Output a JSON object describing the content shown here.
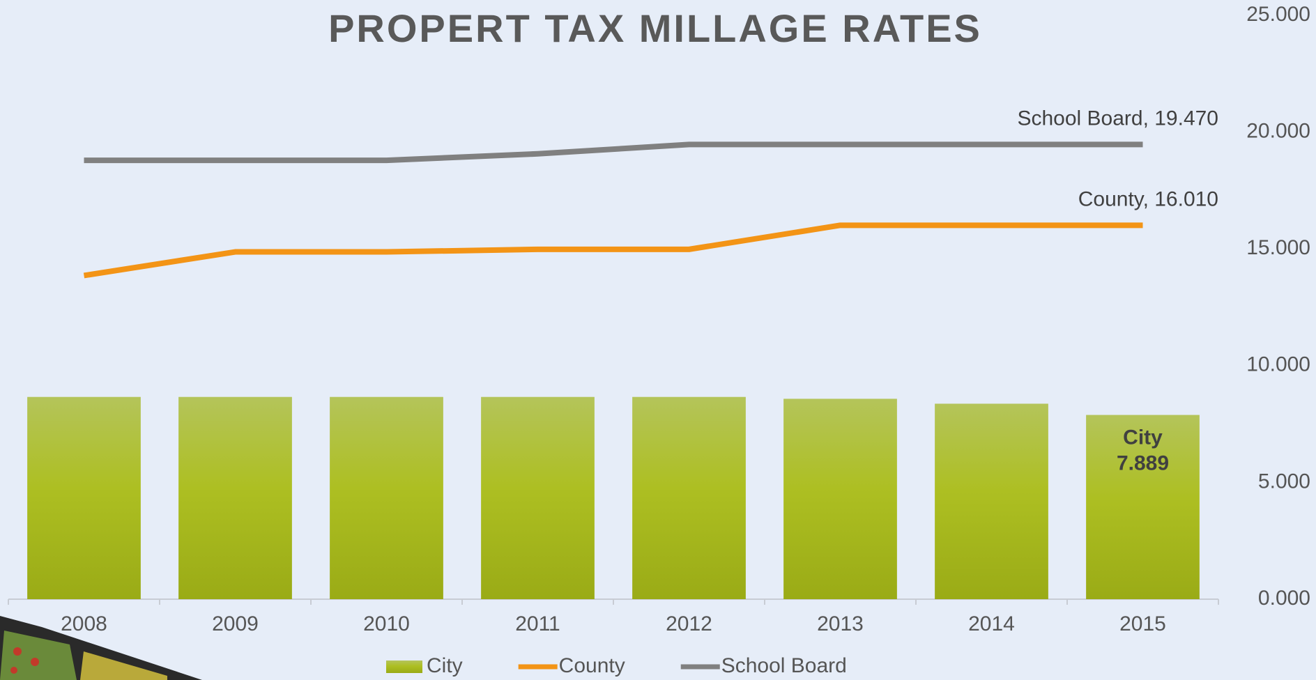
{
  "chart_data": {
    "type": "bar-line",
    "title": "PROPERT TAX MILLAGE RATES",
    "categories": [
      "2008",
      "2009",
      "2010",
      "2011",
      "2012",
      "2013",
      "2014",
      "2015"
    ],
    "series": [
      {
        "name": "City",
        "type": "bar",
        "color": "#a8b824",
        "values": [
          8.66,
          8.66,
          8.66,
          8.66,
          8.66,
          8.58,
          8.37,
          7.889
        ],
        "value_labels": [
          null,
          null,
          null,
          null,
          null,
          null,
          null,
          "7.889"
        ]
      },
      {
        "name": "County",
        "type": "line",
        "color": "#f39416",
        "values": [
          13.86,
          14.87,
          14.87,
          14.98,
          14.98,
          16.01,
          16.01,
          16.01
        ],
        "value_labels": [
          null,
          null,
          null,
          null,
          null,
          null,
          null,
          "16.010"
        ]
      },
      {
        "name": "School Board",
        "type": "line",
        "color": "#808080",
        "values": [
          18.79,
          18.79,
          18.79,
          19.07,
          19.47,
          19.47,
          19.47,
          19.47
        ],
        "value_labels": [
          null,
          null,
          null,
          null,
          null,
          null,
          null,
          "19.470"
        ]
      }
    ],
    "ylim": [
      0,
      25
    ],
    "yticks": [
      {
        "value": 0,
        "label": "0.000"
      },
      {
        "value": 5,
        "label": "5.000"
      },
      {
        "value": 10,
        "label": "10.000"
      },
      {
        "value": 15,
        "label": "15.000"
      },
      {
        "value": 20,
        "label": "20.000"
      },
      {
        "value": 25,
        "label": "25.000"
      }
    ],
    "grid": false,
    "legend": "bottom"
  }
}
